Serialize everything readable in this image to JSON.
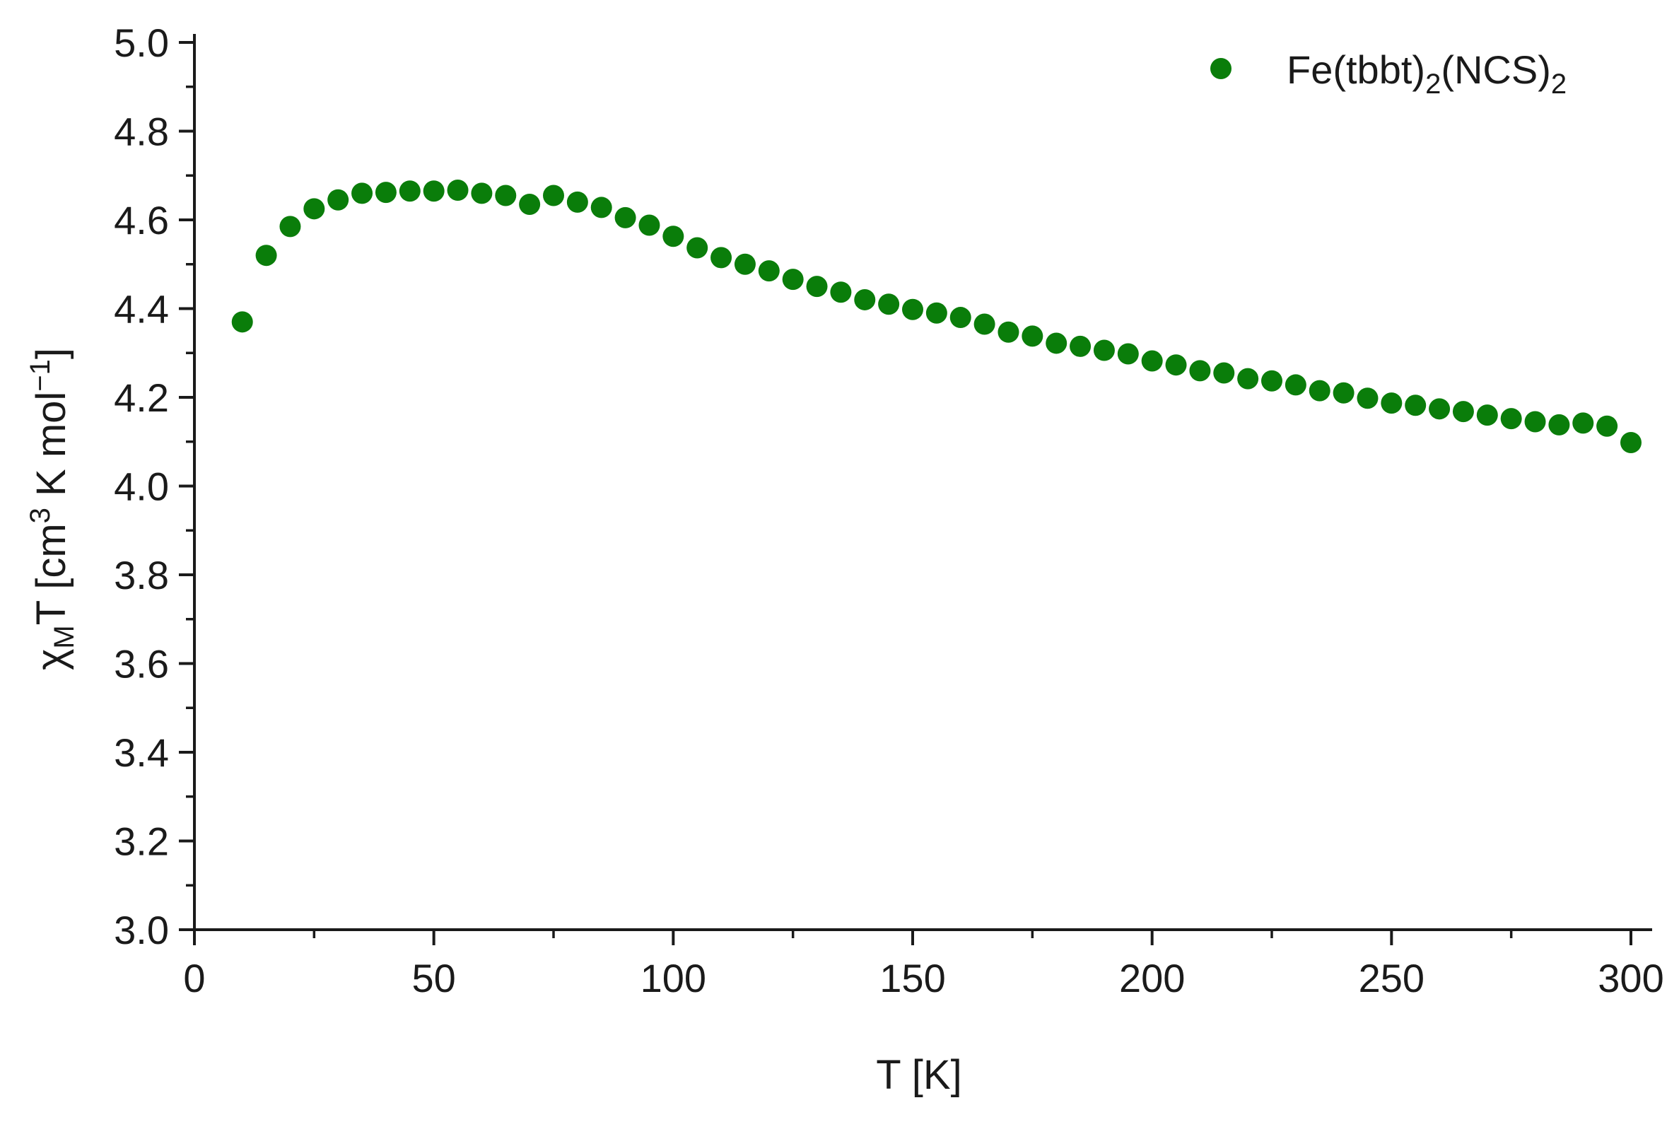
{
  "chart_data": {
    "type": "scatter",
    "title": "",
    "xlabel": "T [K]",
    "ylabel": {
      "symbol": "χ",
      "symbol_sub": "M",
      "text": "T [cm",
      "sup": "3",
      "text2": " K mol",
      "sup2": "−1",
      "text3": "]"
    },
    "xlim": [
      0,
      300
    ],
    "ylim": [
      3.0,
      5.0
    ],
    "x_ticks": [
      0,
      50,
      100,
      150,
      200,
      250,
      300
    ],
    "x_tick_labels": [
      "0",
      "50",
      "100",
      "150",
      "200",
      "250",
      "300"
    ],
    "y_ticks": [
      3.0,
      3.2,
      3.4,
      3.6,
      3.8,
      4.0,
      4.2,
      4.4,
      4.6,
      4.8,
      5.0
    ],
    "y_tick_labels": [
      "3.0",
      "3.2",
      "3.4",
      "3.6",
      "3.8",
      "4.0",
      "4.2",
      "4.4",
      "4.6",
      "4.8",
      "5.0"
    ],
    "grid": false,
    "legend_position": "top-right",
    "marker_color": "#0a7d0a",
    "series": [
      {
        "name": "Fe(tbbt)2(NCS)2",
        "legend": {
          "base": "Fe(tbbt)",
          "sub1": "2",
          "mid": "(NCS)",
          "sub2": "2"
        },
        "x": [
          10,
          15,
          20,
          25,
          30,
          35,
          40,
          45,
          50,
          55,
          60,
          65,
          70,
          75,
          80,
          85,
          90,
          95,
          100,
          105,
          110,
          115,
          120,
          125,
          130,
          135,
          140,
          145,
          150,
          155,
          160,
          165,
          170,
          175,
          180,
          185,
          190,
          195,
          200,
          205,
          210,
          215,
          220,
          225,
          230,
          235,
          240,
          245,
          250,
          255,
          260,
          265,
          270,
          275,
          280,
          285,
          290,
          295,
          300
        ],
        "y": [
          4.37,
          4.52,
          4.585,
          4.625,
          4.645,
          4.66,
          4.662,
          4.665,
          4.665,
          4.667,
          4.66,
          4.655,
          4.635,
          4.655,
          4.64,
          4.628,
          4.605,
          4.588,
          4.563,
          4.537,
          4.515,
          4.5,
          4.485,
          4.466,
          4.45,
          4.437,
          4.42,
          4.41,
          4.398,
          4.39,
          4.38,
          4.365,
          4.347,
          4.338,
          4.322,
          4.315,
          4.306,
          4.298,
          4.282,
          4.273,
          4.26,
          4.255,
          4.242,
          4.237,
          4.228,
          4.215,
          4.21,
          4.198,
          4.187,
          4.182,
          4.174,
          4.168,
          4.16,
          4.152,
          4.145,
          4.138,
          4.142,
          4.135,
          4.098
        ]
      }
    ]
  }
}
